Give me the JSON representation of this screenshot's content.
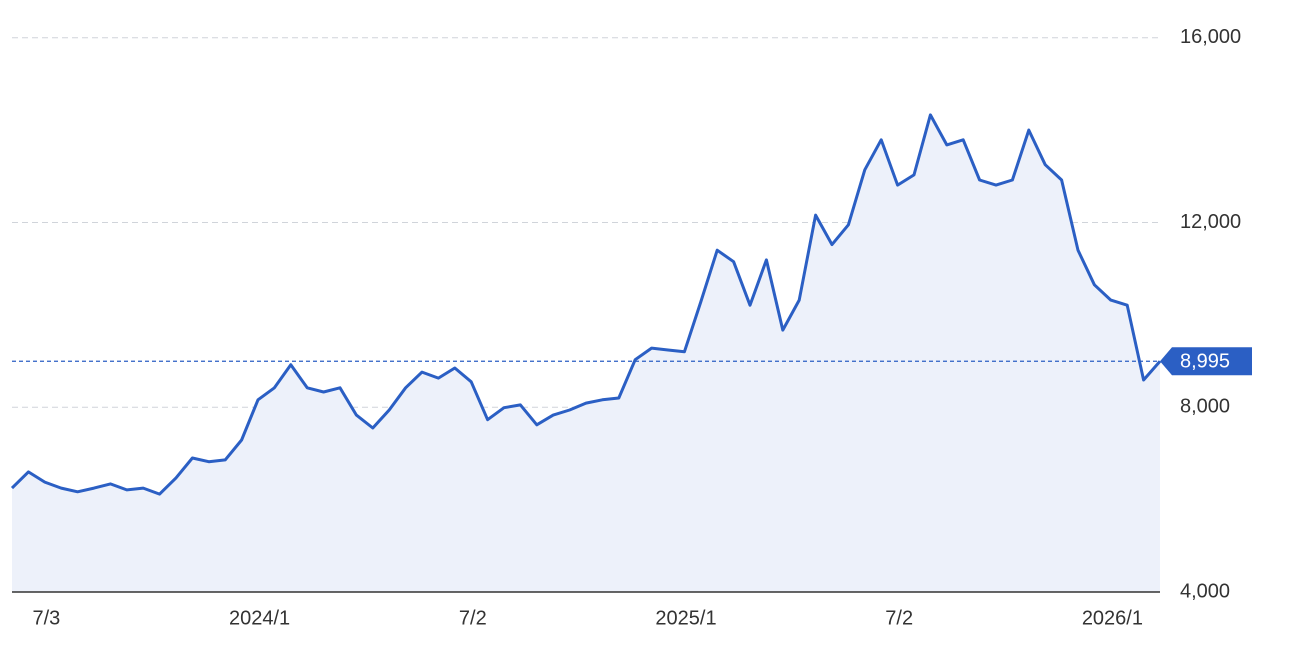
{
  "chart_data": {
    "type": "area-line",
    "categories": [
      null,
      "7/3",
      null,
      null,
      null,
      null,
      null,
      null,
      null,
      null,
      null,
      null,
      null,
      null,
      "2024/1",
      null,
      null,
      null,
      null,
      null,
      null,
      null,
      null,
      null,
      null,
      null,
      null,
      "7/2",
      null,
      null,
      null,
      null,
      null,
      null,
      null,
      null,
      null,
      null,
      null,
      null,
      "2025/1",
      null,
      null,
      null,
      null,
      null,
      null,
      null,
      null,
      null,
      null,
      null,
      null,
      "7/2",
      null,
      null,
      null,
      null,
      null,
      null,
      null,
      null,
      null,
      null,
      null,
      null,
      "2026/1",
      null,
      null,
      null,
      null
    ],
    "series": [
      {
        "color": "#2b5fc4",
        "fill": "#edf1fa",
        "values": [
          6250,
          6600,
          6380,
          6250,
          6170,
          6250,
          6340,
          6210,
          6250,
          6120,
          6470,
          6900,
          6820,
          6860,
          7290,
          8160,
          8420,
          8920,
          8420,
          8330,
          8420,
          7830,
          7550,
          7940,
          8420,
          8760,
          8630,
          8850,
          8550,
          7730,
          7990,
          8050,
          7620,
          7830,
          7940,
          8090,
          8160,
          8200,
          9030,
          9280,
          9240,
          9200,
          10280,
          11400,
          11150,
          10210,
          11190,
          9670,
          10320,
          12160,
          11520,
          11950,
          13140,
          13790,
          12810,
          13030,
          14330,
          13680,
          13790,
          12920,
          12810,
          12920,
          14000,
          13250,
          12920,
          11400,
          10650,
          10320,
          10210,
          8590,
          8995
        ],
        "value_labels": [
          null,
          null,
          null,
          null,
          null,
          null,
          null,
          null,
          null,
          null,
          null,
          null,
          null,
          null,
          null,
          null,
          null,
          null,
          null,
          null,
          null,
          null,
          null,
          null,
          null,
          null,
          null,
          null,
          null,
          null,
          null,
          null,
          null,
          null,
          null,
          null,
          null,
          null,
          null,
          null,
          null,
          null,
          null,
          null,
          null,
          null,
          null,
          null,
          null,
          null,
          null,
          null,
          null,
          null,
          null,
          null,
          null,
          null,
          null,
          null,
          null,
          null,
          null,
          null,
          null,
          null,
          null,
          null,
          null,
          null,
          "8,995"
        ]
      }
    ],
    "ylim": [
      4000,
      16600
    ],
    "yticks": [
      {
        "value": 4000,
        "label": "4,000"
      },
      {
        "value": 8000,
        "label": "8,000"
      },
      {
        "value": 12000,
        "label": "12,000"
      },
      {
        "value": 16000,
        "label": "16,000"
      }
    ],
    "grid": true
  }
}
